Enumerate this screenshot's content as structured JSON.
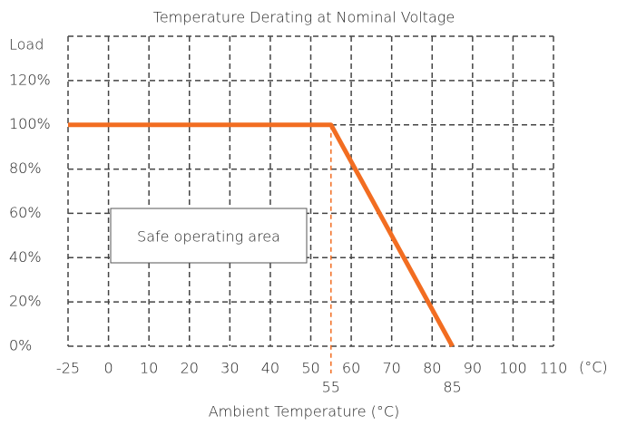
{
  "chart_data": {
    "type": "line",
    "title": "Temperature Derating at Nominal Voltage",
    "xlabel": "Ambient Temperature (°C)",
    "xunit": "(°C)",
    "ylabel": "Load",
    "annotation": "Safe operating area",
    "x": [
      -25,
      55,
      85
    ],
    "series": [
      {
        "name": "Load",
        "color": "#f26d21",
        "values": [
          100,
          100,
          0
        ]
      }
    ],
    "xlim": [
      -25,
      110
    ],
    "xticks": [
      -25,
      0,
      10,
      20,
      30,
      40,
      50,
      60,
      70,
      80,
      90,
      100,
      110
    ],
    "ylim": [
      0,
      140
    ],
    "yticks": [
      {
        "value": 0,
        "label": "0%"
      },
      {
        "value": 20,
        "label": "20%"
      },
      {
        "value": 40,
        "label": "40%"
      },
      {
        "value": 60,
        "label": "60%"
      },
      {
        "value": 80,
        "label": "80%"
      },
      {
        "value": 100,
        "label": "100%"
      },
      {
        "value": 120,
        "label": "120%"
      },
      140
    ],
    "grid": true
  }
}
